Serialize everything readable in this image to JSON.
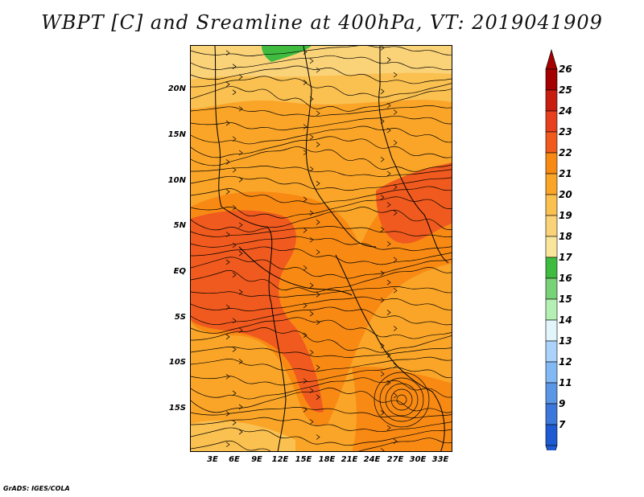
{
  "title": "WBPT [C] and Sreamline at 400hPa, VT: 2019041909",
  "footer": "GrADS: IGES/COLA",
  "map": {
    "lat_labels": [
      "20N",
      "15N",
      "10N",
      "5N",
      "EQ",
      "5S",
      "10S",
      "15S"
    ],
    "lon_labels": [
      "3E",
      "6E",
      "9E",
      "12E",
      "15E",
      "18E",
      "21E",
      "24E",
      "27E",
      "30E",
      "33E"
    ],
    "colorbar": {
      "levels": [
        "26",
        "25",
        "24",
        "23",
        "22",
        "21",
        "20",
        "19",
        "18",
        "17",
        "16",
        "15",
        "14",
        "13",
        "12",
        "11",
        "9",
        "7"
      ],
      "colors": [
        "#a50000",
        "#c81e0f",
        "#e6401e",
        "#f05a1e",
        "#f88a14",
        "#faa528",
        "#fac050",
        "#fad278",
        "#fae69b",
        "#3fbb3f",
        "#78d278",
        "#b4f0b4",
        "#e1f5fa",
        "#aad2fa",
        "#82b9f5",
        "#5a96e6",
        "#3c78dc",
        "#1e5ad2"
      ]
    }
  }
}
